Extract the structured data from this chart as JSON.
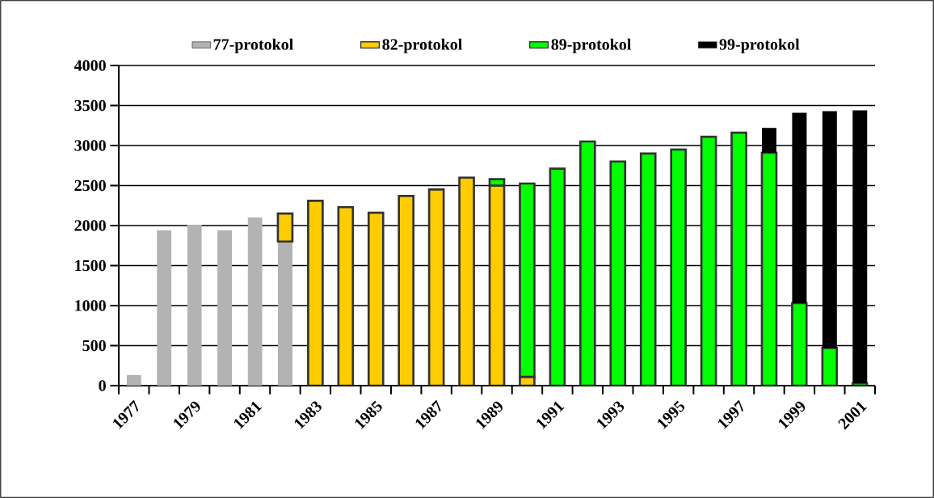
{
  "chart_data": {
    "type": "bar",
    "stacked": true,
    "categories": [
      "1977",
      null,
      "1979",
      null,
      "1981",
      null,
      "1983",
      null,
      "1985",
      null,
      "1987",
      null,
      "1989",
      null,
      "1991",
      null,
      "1993",
      null,
      "1995",
      null,
      "1997",
      null,
      "1999",
      null,
      "2001"
    ],
    "ylim": [
      0,
      4000
    ],
    "yticks": [
      0,
      500,
      1000,
      1500,
      2000,
      2500,
      3000,
      3500,
      4000
    ],
    "grid": "y",
    "legend": "top",
    "series": [
      {
        "name": "77-protokol",
        "color": "#b3b3b3",
        "values": [
          130,
          1940,
          2010,
          1940,
          2100,
          1800,
          null,
          null,
          null,
          null,
          null,
          null,
          null,
          null,
          null,
          null,
          null,
          null,
          null,
          null,
          null,
          null,
          null,
          null,
          null
        ]
      },
      {
        "name": "82-protokol",
        "color": "#ffcc00",
        "values": [
          null,
          null,
          null,
          null,
          null,
          350,
          2310,
          2230,
          2160,
          2370,
          2450,
          2600,
          2500,
          110,
          null,
          null,
          null,
          null,
          null,
          null,
          null,
          null,
          null,
          null,
          null
        ]
      },
      {
        "name": "89-protokol",
        "color": "#00ff00",
        "values": [
          null,
          null,
          null,
          null,
          null,
          null,
          null,
          null,
          null,
          null,
          null,
          null,
          80,
          2415,
          2710,
          3050,
          2800,
          2900,
          2950,
          3110,
          3160,
          2910,
          1030,
          470,
          30
        ]
      },
      {
        "name": "99-protokol",
        "color": "#000000",
        "values": [
          null,
          null,
          null,
          null,
          null,
          null,
          null,
          null,
          null,
          null,
          null,
          null,
          null,
          null,
          null,
          null,
          null,
          null,
          null,
          null,
          null,
          310,
          2380,
          2960,
          3410
        ]
      }
    ]
  }
}
